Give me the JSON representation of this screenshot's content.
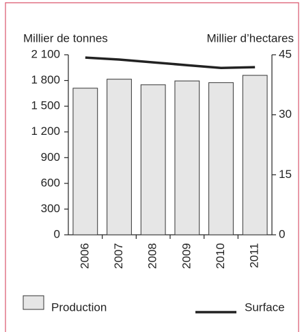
{
  "chart_data": {
    "type": "bar",
    "y_label": "Millier de tonnes",
    "y2_label": "Millier d’hectares",
    "categories": [
      "2006",
      "2007",
      "2008",
      "2009",
      "2010",
      "2011"
    ],
    "series": [
      {
        "name": "Production",
        "type": "bar",
        "color": "#e6e6e6",
        "values": [
          1710,
          1815,
          1750,
          1795,
          1775,
          1860
        ]
      },
      {
        "name": "Surface",
        "type": "line",
        "axis": "y2",
        "color": "#222222",
        "values": [
          44.3,
          43.8,
          43.1,
          42.4,
          41.7,
          41.9
        ]
      }
    ],
    "ylim": [
      0,
      2100
    ],
    "yticks": [
      0,
      300,
      600,
      900,
      {
        "value": 1200,
        "label": "1 200"
      },
      {
        "value": 1500,
        "label": "1 500"
      },
      {
        "value": 1800,
        "label": "1 800"
      },
      {
        "value": 2100,
        "label": "2 100"
      }
    ],
    "y2lim": [
      0,
      45
    ],
    "y2ticks": [
      0,
      15,
      30,
      45
    ]
  }
}
